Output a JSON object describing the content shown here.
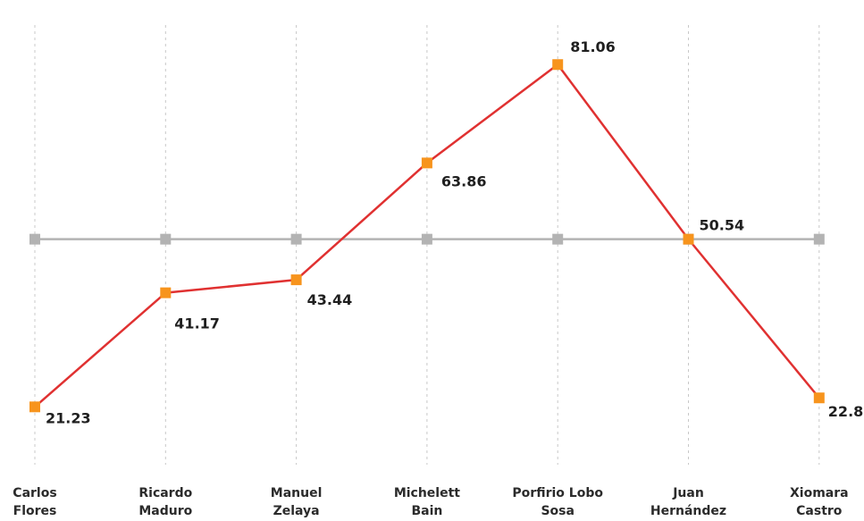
{
  "chart_data": {
    "type": "line",
    "categories": [
      [
        "Carlos",
        "Flores"
      ],
      [
        "Ricardo",
        "Maduro"
      ],
      [
        "Manuel",
        "Zelaya"
      ],
      [
        "Michelett",
        "Bain"
      ],
      [
        "Porfirio Lobo",
        "Sosa"
      ],
      [
        "Juan",
        "Hernández"
      ],
      [
        "Xiomara",
        "Castro"
      ]
    ],
    "series": [
      {
        "values": [
          21.23,
          41.17,
          43.44,
          63.86,
          81.06,
          50.54,
          22.8
        ],
        "labels": [
          "21.23",
          "41.17",
          "43.44",
          "63.86",
          "81.06",
          "50.54",
          "22.8"
        ],
        "line_color": "#e03131",
        "marker_color": "#f7941d"
      },
      {
        "values": [
          50.54,
          50.54,
          50.54,
          50.54,
          50.54,
          50.54,
          50.54
        ],
        "line_color": "#b3b3b3",
        "marker_color": "#b3b3b3"
      }
    ],
    "ylim": [
      8,
      90
    ],
    "grid": "vertical-dashed"
  }
}
